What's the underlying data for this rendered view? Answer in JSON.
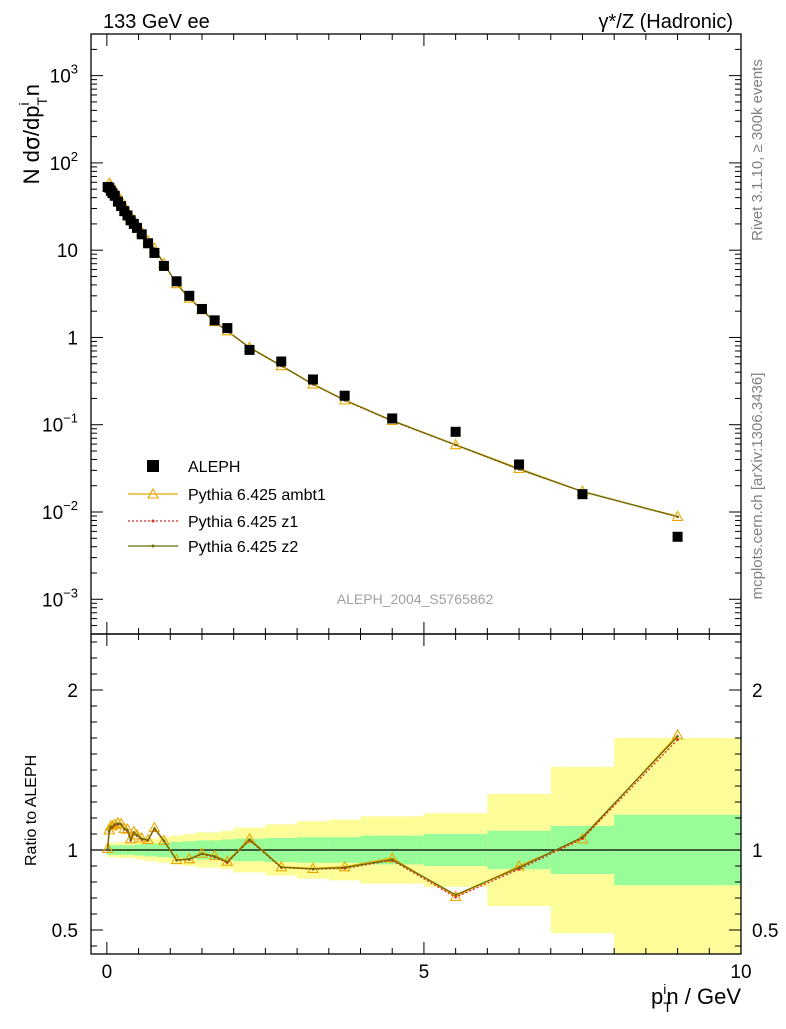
{
  "header": {
    "left": "133 GeV ee",
    "right": "γ*/Z (Hadronic)"
  },
  "side_labels": {
    "rivet": "Rivet 3.1.10, ≥ 300k events",
    "mcplots": "mcplots.cern.ch [arXiv:1306.3436]"
  },
  "watermark": "ALEPH_2004_S5765862",
  "chart_data": [
    {
      "type": "scatter",
      "panel": "main",
      "ylabel": "N dσ/dp_T^i n",
      "yscale": "log",
      "ylim": [
        0.0004,
        3000
      ],
      "xlim": [
        -0.25,
        10
      ],
      "y_tick_labels": [
        "10^-3",
        "10^-2",
        "10^-1",
        "1",
        "10",
        "10^2",
        "10^3"
      ],
      "legend_position": "bottom-left",
      "x_values": [
        0.0125,
        0.0375,
        0.0625,
        0.0875,
        0.125,
        0.175,
        0.225,
        0.275,
        0.325,
        0.375,
        0.425,
        0.475,
        0.55,
        0.65,
        0.75,
        0.9,
        1.1,
        1.3,
        1.5,
        1.7,
        1.9,
        2.25,
        2.75,
        3.25,
        3.75,
        4.5,
        5.5,
        6.5,
        7.5,
        9.0
      ],
      "series": [
        {
          "name": "ALEPH",
          "color": "#000000",
          "marker": "square",
          "values": [
            53,
            52,
            48,
            45,
            42,
            36,
            32,
            28,
            25,
            22,
            20,
            18,
            15.2,
            12,
            9.3,
            6.6,
            4.4,
            3.0,
            2.12,
            1.57,
            1.28,
            0.72,
            0.53,
            0.33,
            0.215,
            0.118,
            0.083,
            0.035,
            0.016,
            0.0052
          ]
        },
        {
          "name": "Pythia 6.425 ambt1",
          "color": "#e8a800",
          "marker": "triangle",
          "values": [
            53.5,
            58.5,
            55.2,
            51.8,
            48.7,
            42.0,
            37.3,
            31.8,
            28.2,
            23.5,
            22.3,
            19.7,
            16.3,
            12.8,
            10.6,
            7.02,
            4.13,
            2.83,
            2.08,
            1.52,
            1.19,
            0.77,
            0.475,
            0.292,
            0.192,
            0.112,
            0.059,
            0.0315,
            0.0172,
            0.0089
          ]
        },
        {
          "name": "Pythia 6.425 z1",
          "color": "#e0282c",
          "marker": "dot",
          "values": [
            53.5,
            58.0,
            54.7,
            51.5,
            48.5,
            41.8,
            37.1,
            31.6,
            28.1,
            23.3,
            22.1,
            19.5,
            16.2,
            12.7,
            10.5,
            6.96,
            4.1,
            2.81,
            2.06,
            1.5,
            1.18,
            0.76,
            0.472,
            0.29,
            0.19,
            0.11,
            0.0585,
            0.0308,
            0.0171,
            0.0088
          ]
        },
        {
          "name": "Pythia 6.425 z2",
          "color": "#6b6b00",
          "marker": "dot",
          "values": [
            53.5,
            58.2,
            54.9,
            51.6,
            48.6,
            41.9,
            37.2,
            31.7,
            28.1,
            23.4,
            22.2,
            19.6,
            16.2,
            12.7,
            10.5,
            6.98,
            4.11,
            2.82,
            2.07,
            1.51,
            1.18,
            0.765,
            0.474,
            0.291,
            0.191,
            0.111,
            0.0588,
            0.031,
            0.0171,
            0.00885
          ]
        }
      ]
    },
    {
      "type": "line",
      "panel": "ratio",
      "ylabel": "Ratio to ALEPH",
      "xlabel": "p_T^i n / GeV",
      "ylim": [
        0.35,
        2.35
      ],
      "xlim": [
        -0.25,
        10
      ],
      "x_tick_labels": [
        "0",
        "5",
        "10"
      ],
      "y_tick_labels": [
        "0.5",
        "1",
        "2"
      ],
      "x_values": [
        0.0125,
        0.0375,
        0.0625,
        0.0875,
        0.125,
        0.175,
        0.225,
        0.275,
        0.325,
        0.375,
        0.425,
        0.475,
        0.55,
        0.65,
        0.75,
        0.9,
        1.1,
        1.3,
        1.5,
        1.7,
        1.9,
        2.25,
        2.75,
        3.25,
        3.75,
        4.5,
        5.5,
        6.5,
        7.5,
        9.0
      ],
      "bands": {
        "x_edges": [
          0,
          0.025,
          0.05,
          0.075,
          0.1,
          0.15,
          0.2,
          0.25,
          0.3,
          0.35,
          0.4,
          0.45,
          0.5,
          0.6,
          0.7,
          0.8,
          1.0,
          1.2,
          1.4,
          1.6,
          1.8,
          2.0,
          2.5,
          3.0,
          3.5,
          4.0,
          5.0,
          6.0,
          7.0,
          8.0,
          10.0
        ],
        "stat_color": "#98fc98",
        "total_color": "#fcfc98",
        "stat_half_width": [
          0.03,
          0.03,
          0.03,
          0.03,
          0.03,
          0.03,
          0.03,
          0.03,
          0.03,
          0.03,
          0.03,
          0.035,
          0.035,
          0.04,
          0.04,
          0.045,
          0.05,
          0.055,
          0.06,
          0.06,
          0.065,
          0.07,
          0.075,
          0.08,
          0.08,
          0.09,
          0.1,
          0.12,
          0.15,
          0.22
        ],
        "total_half_width": [
          0.045,
          0.045,
          0.045,
          0.045,
          0.045,
          0.05,
          0.05,
          0.05,
          0.05,
          0.05,
          0.05,
          0.06,
          0.06,
          0.07,
          0.07,
          0.08,
          0.09,
          0.1,
          0.11,
          0.11,
          0.12,
          0.14,
          0.16,
          0.18,
          0.19,
          0.21,
          0.23,
          0.35,
          0.52,
          0.7
        ]
      },
      "reference_line": 1,
      "series": [
        {
          "name": "Pythia 6.425 ambt1",
          "color": "#e8a800",
          "values": [
            1.01,
            1.125,
            1.15,
            1.15,
            1.16,
            1.17,
            1.165,
            1.135,
            1.13,
            1.07,
            1.115,
            1.095,
            1.075,
            1.065,
            1.14,
            1.06,
            0.94,
            0.945,
            0.98,
            0.965,
            0.93,
            1.07,
            0.895,
            0.885,
            0.895,
            0.95,
            0.71,
            0.9,
            1.07,
            1.72
          ]
        },
        {
          "name": "Pythia 6.425 z1",
          "color": "#e0282c",
          "values": [
            1.0,
            1.115,
            1.14,
            1.14,
            1.155,
            1.16,
            1.16,
            1.13,
            1.12,
            1.06,
            1.105,
            1.09,
            1.065,
            1.06,
            1.13,
            1.055,
            0.935,
            0.94,
            0.975,
            0.955,
            0.92,
            1.06,
            0.89,
            0.88,
            0.885,
            0.935,
            0.705,
            0.88,
            1.07,
            1.69
          ]
        },
        {
          "name": "Pythia 6.425 z2",
          "color": "#6b6b00",
          "values": [
            1.005,
            1.12,
            1.145,
            1.145,
            1.16,
            1.165,
            1.16,
            1.132,
            1.125,
            1.065,
            1.11,
            1.092,
            1.07,
            1.062,
            1.135,
            1.058,
            0.937,
            0.942,
            0.977,
            0.96,
            0.925,
            1.065,
            0.892,
            0.882,
            0.89,
            0.94,
            0.72,
            0.89,
            1.08,
            1.71
          ]
        }
      ]
    }
  ]
}
